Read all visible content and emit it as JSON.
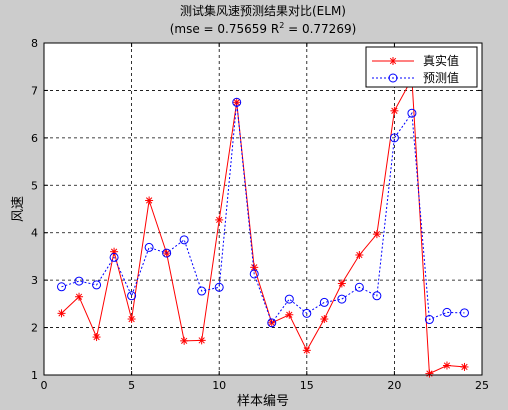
{
  "chart_data": {
    "type": "line",
    "title": "测试集风速预测结果对比(ELM)",
    "subtitle": {
      "prefix": "(mse = 0.75659 R",
      "superscript": "2",
      "suffix": " = 0.77269)"
    },
    "xlabel": "样本编号",
    "ylabel": "风速",
    "xlim": [
      0,
      25
    ],
    "ylim": [
      1,
      8
    ],
    "xticks": [
      0,
      5,
      10,
      15,
      20,
      25
    ],
    "yticks": [
      1,
      2,
      3,
      4,
      5,
      6,
      7,
      8
    ],
    "grid": true,
    "legend_position": "top-right",
    "x": [
      1,
      2,
      3,
      4,
      5,
      6,
      7,
      8,
      9,
      10,
      11,
      12,
      13,
      14,
      15,
      16,
      17,
      18,
      19,
      20,
      21,
      22,
      23,
      24
    ],
    "series": [
      {
        "name": "真实值",
        "color": "#ff0000",
        "marker": "star",
        "line": "solid",
        "values": [
          2.3,
          2.65,
          1.8,
          3.6,
          2.18,
          4.68,
          3.57,
          1.72,
          1.73,
          4.27,
          6.75,
          3.27,
          2.1,
          2.27,
          1.52,
          2.18,
          2.93,
          3.53,
          3.97,
          6.57,
          7.25,
          1.03,
          1.2,
          1.17
        ]
      },
      {
        "name": "预测值",
        "color": "#0000ff",
        "marker": "circle",
        "line": "dashed",
        "values": [
          2.86,
          2.98,
          2.9,
          3.48,
          2.67,
          3.69,
          3.57,
          3.85,
          2.77,
          2.85,
          6.75,
          3.13,
          2.1,
          2.6,
          2.3,
          2.53,
          2.6,
          2.85,
          2.67,
          6.0,
          6.52,
          2.17,
          2.32,
          2.31
        ]
      }
    ]
  }
}
